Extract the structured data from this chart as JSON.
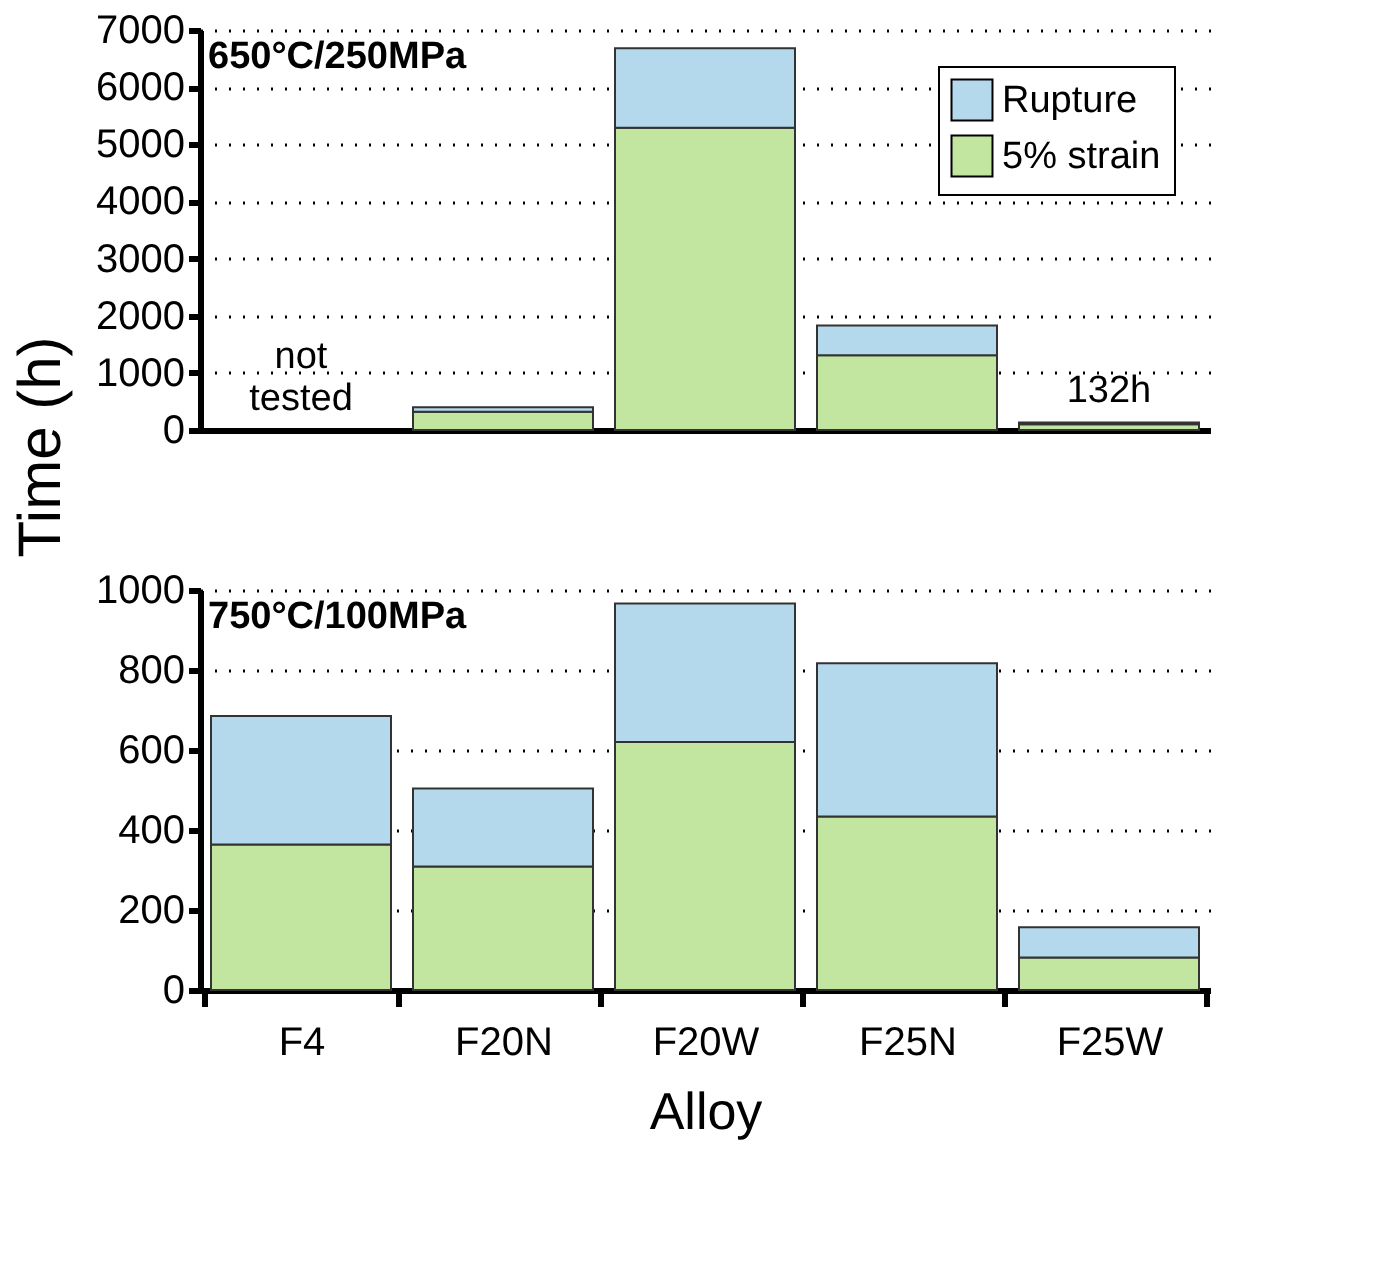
{
  "chart_data": [
    {
      "type": "bar",
      "stacked": true,
      "categories": [
        "F4",
        "F20N",
        "F20W",
        "F25N",
        "F25W"
      ],
      "ylabel": "Time (h)",
      "ylim": [
        0,
        7000
      ],
      "yticks": [
        0,
        1000,
        2000,
        3000,
        4000,
        5000,
        6000,
        7000
      ],
      "grid": "y",
      "legend": "top right",
      "tick_labels": "y",
      "series": [
        {
          "name": "5% strain",
          "color": "#c2e5a0",
          "values": [
            null,
            320,
            5290,
            1310,
            100
          ]
        },
        {
          "name": "Rupture",
          "color": "#b4d8ec",
          "values": [
            null,
            80,
            1390,
            520,
            30
          ]
        }
      ],
      "annotations": [
        "650°C/250MPa",
        "not tested",
        {
          "text": "132h",
          "x": "F25W",
          "y": 132
        }
      ]
    },
    {
      "type": "bar",
      "stacked": true,
      "categories": [
        "F4",
        "F20N",
        "F20W",
        "F25N",
        "F25W"
      ],
      "xlabel": "Alloy",
      "ylim": [
        0,
        1000
      ],
      "yticks": [
        0,
        200,
        400,
        600,
        800,
        1000
      ],
      "grid": "y",
      "legend": false,
      "series": [
        {
          "color": "#c2e5a0",
          "values": [
            364,
            309,
            620,
            434,
            81
          ]
        },
        {
          "color": "#b4d8ec",
          "values": [
            321,
            195,
            346,
            383,
            76
          ]
        }
      ],
      "annotations": [
        "750°C/100MPa"
      ]
    }
  ]
}
